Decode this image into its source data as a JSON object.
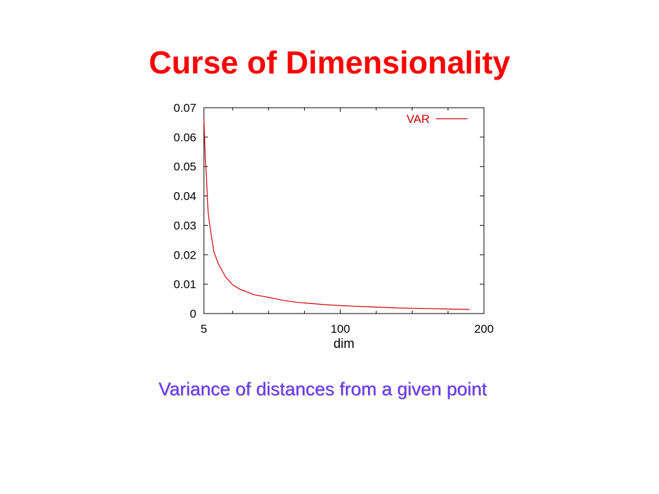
{
  "slide": {
    "title": "Curse of Dimensionality",
    "caption": "Variance of distances from a given point"
  },
  "colors": {
    "title": "#ff0000",
    "caption": "#6633ff",
    "series": "#cc0000",
    "axis": "#000000"
  },
  "chart_data": {
    "type": "line",
    "title": "",
    "xlabel": "dim",
    "ylabel": "",
    "xlim": [
      5,
      200
    ],
    "ylim": [
      0,
      0.07
    ],
    "xticks": [
      5,
      100,
      200
    ],
    "xtick_labels": [
      "5",
      "100",
      "200"
    ],
    "x_minor_ticks": [
      25,
      50,
      75,
      125,
      150,
      175
    ],
    "yticks": [
      0,
      0.01,
      0.02,
      0.03,
      0.04,
      0.05,
      0.06,
      0.07
    ],
    "ytick_labels": [
      "0",
      "0.01",
      "0.02",
      "0.03",
      "0.04",
      "0.05",
      "0.06",
      "0.07"
    ],
    "grid": false,
    "legend_position": "top-right",
    "series": [
      {
        "name": "VAR",
        "x": [
          5,
          6,
          7,
          8,
          10,
          12,
          15,
          20,
          25,
          30,
          40,
          50,
          60,
          70,
          80,
          90,
          100,
          110,
          120,
          130,
          140,
          150,
          160,
          170,
          180,
          190
        ],
        "y": [
          0.066,
          0.053,
          0.044,
          0.034,
          0.027,
          0.021,
          0.017,
          0.0125,
          0.0098,
          0.0083,
          0.0064,
          0.0055,
          0.0045,
          0.0038,
          0.0034,
          0.003,
          0.0027,
          0.0025,
          0.0023,
          0.0021,
          0.0019,
          0.0018,
          0.0017,
          0.0016,
          0.0015,
          0.0014
        ]
      }
    ]
  }
}
